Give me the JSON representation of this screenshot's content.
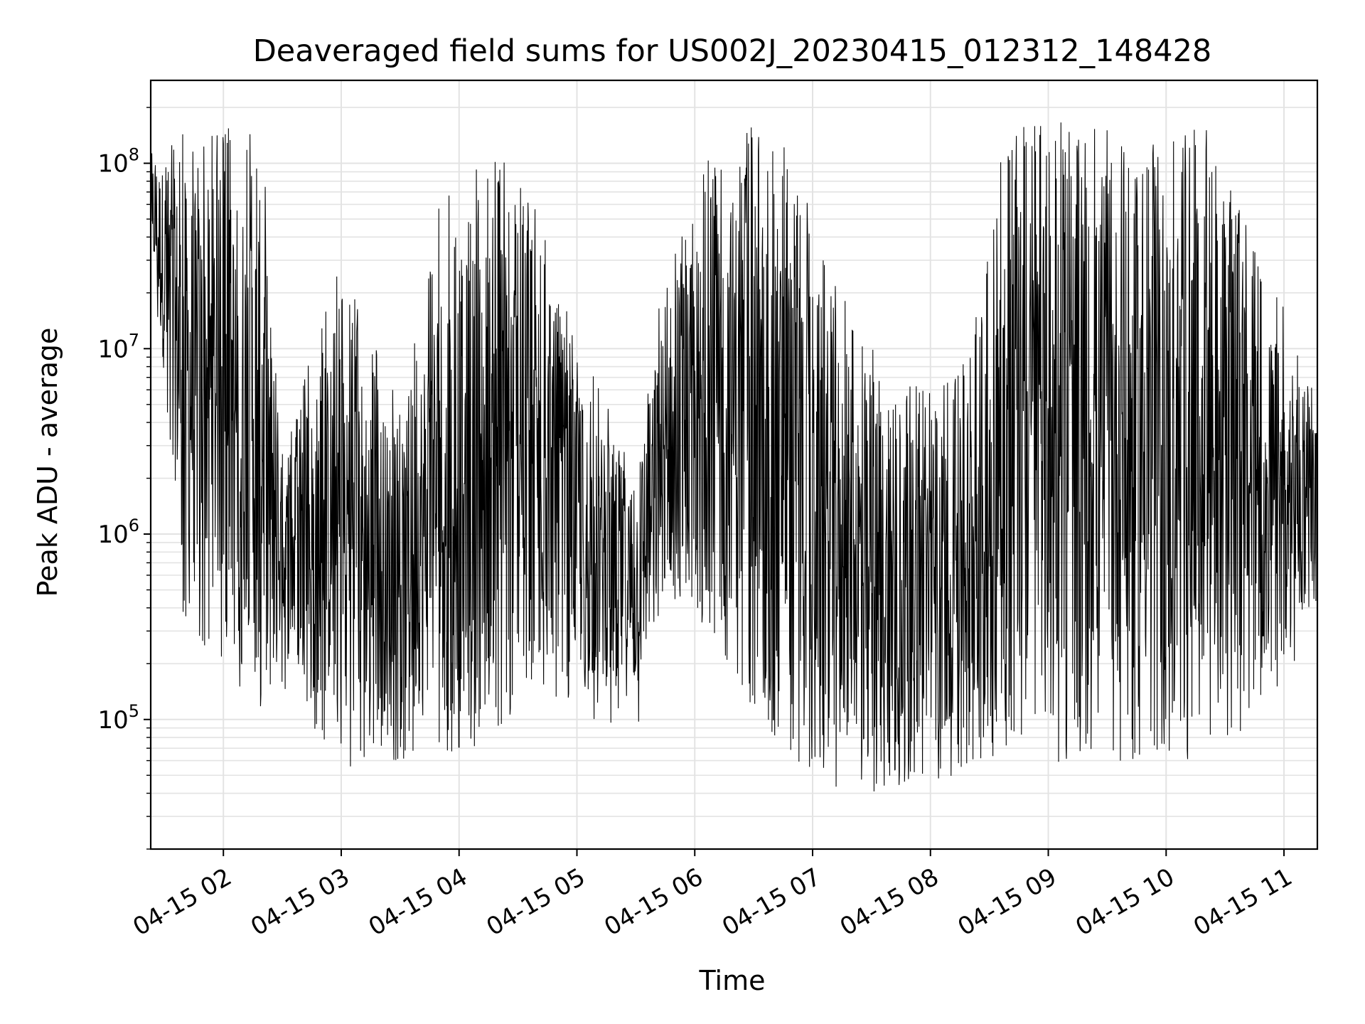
{
  "chart_data": {
    "type": "line",
    "title": "Deaveraged field sums for US002J_20230415_012312_148428",
    "xlabel": "Time",
    "ylabel": "Peak ADU - average",
    "yscale": "log",
    "ylim": [
      20000,
      280000000
    ],
    "xlim": [
      "2023-04-15 01:23",
      "2023-04-15 11:17"
    ],
    "grid": true,
    "x_ticks": [
      {
        "t": "2023-04-15 02:00",
        "label": "04-15 02"
      },
      {
        "t": "2023-04-15 03:00",
        "label": "04-15 03"
      },
      {
        "t": "2023-04-15 04:00",
        "label": "04-15 04"
      },
      {
        "t": "2023-04-15 05:00",
        "label": "04-15 05"
      },
      {
        "t": "2023-04-15 06:00",
        "label": "04-15 06"
      },
      {
        "t": "2023-04-15 07:00",
        "label": "04-15 07"
      },
      {
        "t": "2023-04-15 08:00",
        "label": "04-15 08"
      },
      {
        "t": "2023-04-15 09:00",
        "label": "04-15 09"
      },
      {
        "t": "2023-04-15 10:00",
        "label": "04-15 10"
      },
      {
        "t": "2023-04-15 11:00",
        "label": "04-15 11"
      }
    ],
    "y_ticks": [
      {
        "value": 100000,
        "base": "10",
        "exp": "5"
      },
      {
        "value": 1000000,
        "base": "10",
        "exp": "6"
      },
      {
        "value": 10000000,
        "base": "10",
        "exp": "7"
      },
      {
        "value": 100000000,
        "base": "10",
        "exp": "8"
      }
    ],
    "series": [
      {
        "color": "#000000",
        "style": "dense signal: per-interval min/max envelope",
        "points": [
          {
            "t": "2023-04-15 01:23",
            "lo": 30000000,
            "hi": 140000000
          },
          {
            "t": "2023-04-15 01:40",
            "lo": 300000,
            "hi": 160000000
          },
          {
            "t": "2023-04-15 02:00",
            "lo": 200000,
            "hi": 160000000
          },
          {
            "t": "2023-04-15 02:20",
            "lo": 100000,
            "hi": 160000000
          },
          {
            "t": "2023-04-15 02:30",
            "lo": 150000,
            "hi": 3000000
          },
          {
            "t": "2023-04-15 03:00",
            "lo": 55000,
            "hi": 30000000
          },
          {
            "t": "2023-04-15 03:30",
            "lo": 60000,
            "hi": 5000000
          },
          {
            "t": "2023-04-15 03:50",
            "lo": 60000,
            "hi": 60000000
          },
          {
            "t": "2023-04-15 04:20",
            "lo": 70000,
            "hi": 120000000
          },
          {
            "t": "2023-04-15 04:40",
            "lo": 150000,
            "hi": 60000000
          },
          {
            "t": "2023-04-15 05:00",
            "lo": 100000,
            "hi": 10000000
          },
          {
            "t": "2023-04-15 05:30",
            "lo": 80000,
            "hi": 3000000
          },
          {
            "t": "2023-04-15 05:45",
            "lo": 300000,
            "hi": 30000000
          },
          {
            "t": "2023-04-15 06:15",
            "lo": 200000,
            "hi": 175000000
          },
          {
            "t": "2023-04-15 06:45",
            "lo": 60000,
            "hi": 140000000
          },
          {
            "t": "2023-04-15 07:15",
            "lo": 40000,
            "hi": 20000000
          },
          {
            "t": "2023-04-15 07:45",
            "lo": 38000,
            "hi": 6000000
          },
          {
            "t": "2023-04-15 08:15",
            "lo": 50000,
            "hi": 8000000
          },
          {
            "t": "2023-04-15 08:40",
            "lo": 70000,
            "hi": 170000000
          },
          {
            "t": "2023-04-15 09:15",
            "lo": 55000,
            "hi": 165000000
          },
          {
            "t": "2023-04-15 09:50",
            "lo": 60000,
            "hi": 140000000
          },
          {
            "t": "2023-04-15 10:20",
            "lo": 60000,
            "hi": 155000000
          },
          {
            "t": "2023-04-15 10:45",
            "lo": 90000,
            "hi": 40000000
          },
          {
            "t": "2023-04-15 11:17",
            "lo": 300000,
            "hi": 6000000
          }
        ]
      }
    ]
  }
}
